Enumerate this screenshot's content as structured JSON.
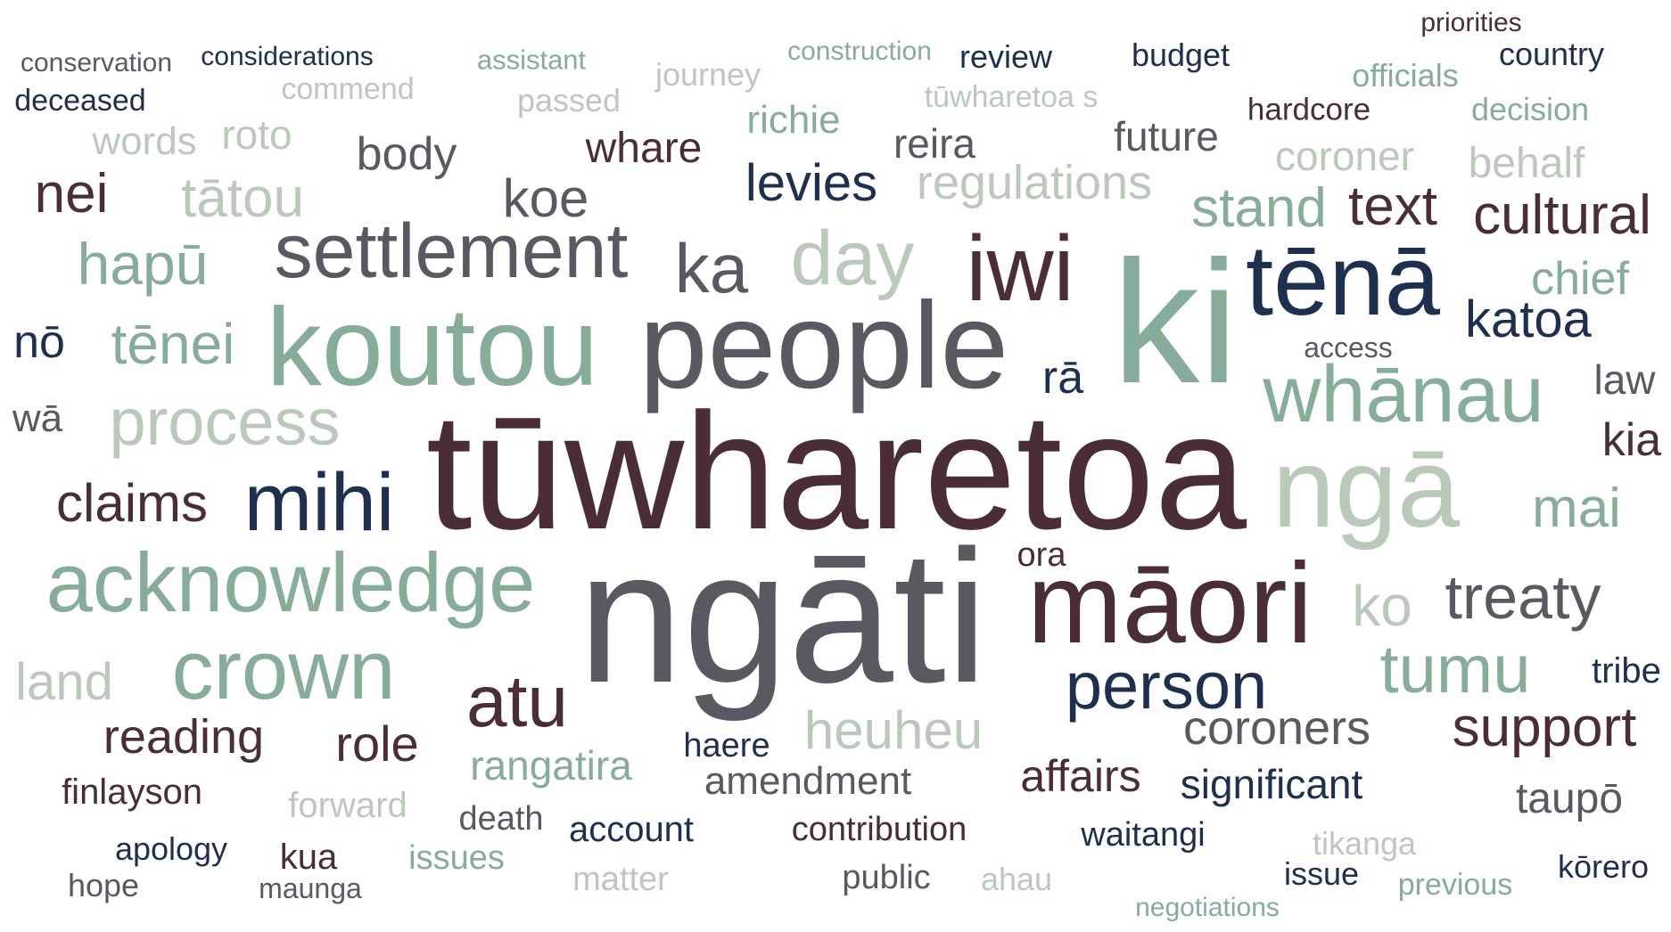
{
  "palette": {
    "plum": "#4a2d35",
    "slate": "#5a5860",
    "navy": "#1e3050",
    "sage": "#85ad97",
    "pale_sage": "#b9cab9"
  },
  "words": [
    "priorities",
    "conservation",
    "considerations",
    "assistant",
    "construction",
    "review",
    "budget",
    "country",
    "deceased",
    "commend",
    "journey",
    "tūwharetoa s",
    "officials",
    "passed",
    "hardcore",
    "decision",
    "words",
    "roto",
    "richie",
    "reira",
    "future",
    "coroner",
    "behalf",
    "body",
    "whare",
    "nei",
    "tātou",
    "koe",
    "levies",
    "regulations",
    "stand",
    "text",
    "cultural",
    "settlement",
    "day",
    "iwi",
    "ka",
    "tēnā",
    "hapū",
    "chief",
    "ki",
    "koutou",
    "people",
    "katoa",
    "nō",
    "tēnei",
    "access",
    "rā",
    "law",
    "process",
    "whānau",
    "wā",
    "kia",
    "tūwharetoa",
    "ngā",
    "claims",
    "mihi",
    "mai",
    "acknowledge",
    "ora",
    "ngāti",
    "māori",
    "ko",
    "treaty",
    "crown",
    "land",
    "tumu",
    "tribe",
    "person",
    "atu",
    "heuheu",
    "reading",
    "role",
    "coroners",
    "support",
    "haere",
    "rangatira",
    "amendment",
    "affairs",
    "significant",
    "finlayson",
    "taupō",
    "forward",
    "death",
    "account",
    "contribution",
    "waitangi",
    "tikanga",
    "apology",
    "kua",
    "issues",
    "kōrero",
    "hope",
    "maunga",
    "matter",
    "public",
    "ahau",
    "issue",
    "previous",
    "negotiations"
  ]
}
